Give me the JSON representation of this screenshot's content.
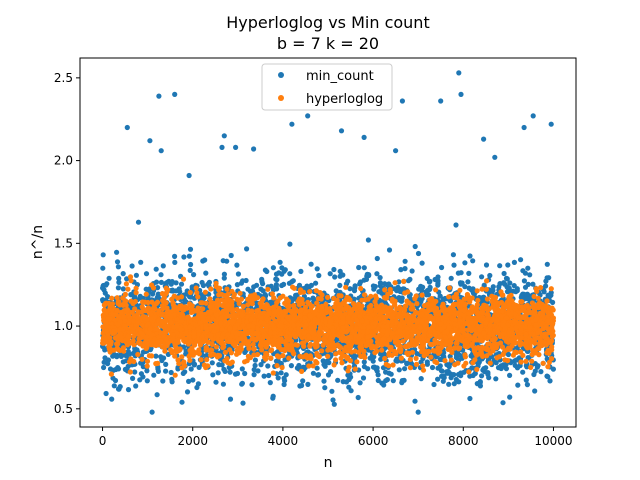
{
  "chart_data": {
    "type": "scatter",
    "title_line1": "Hyperloglog vs Min count",
    "title_line2": "b = 7 k = 20",
    "xlabel": "n",
    "ylabel": "n^/n",
    "xlim": [
      -500,
      10500
    ],
    "ylim": [
      0.39,
      2.62
    ],
    "xticks": [
      0,
      2000,
      4000,
      6000,
      8000,
      10000
    ],
    "xtick_labels": [
      "0",
      "2000",
      "4000",
      "6000",
      "8000",
      "10000"
    ],
    "yticks": [
      0.5,
      1.0,
      1.5,
      2.0,
      2.5
    ],
    "ytick_labels": [
      "0.5",
      "1.0",
      "1.5",
      "2.0",
      "2.5"
    ],
    "grid": false,
    "legend_position": "top-center",
    "series": [
      {
        "name": "min_count",
        "color": "#1f77b4",
        "n_points_approx": 10000,
        "x_range": [
          0,
          10000
        ],
        "center": 1.0,
        "spread_sd": 0.16,
        "notable_points": [
          {
            "x": 550,
            "y": 2.2
          },
          {
            "x": 1050,
            "y": 2.12
          },
          {
            "x": 1250,
            "y": 2.39
          },
          {
            "x": 1300,
            "y": 2.06
          },
          {
            "x": 1600,
            "y": 2.4
          },
          {
            "x": 1920,
            "y": 1.91
          },
          {
            "x": 2650,
            "y": 2.08
          },
          {
            "x": 2700,
            "y": 2.15
          },
          {
            "x": 2950,
            "y": 2.08
          },
          {
            "x": 3350,
            "y": 2.07
          },
          {
            "x": 4200,
            "y": 2.22
          },
          {
            "x": 4550,
            "y": 2.27
          },
          {
            "x": 5300,
            "y": 2.18
          },
          {
            "x": 5800,
            "y": 2.14
          },
          {
            "x": 6500,
            "y": 2.06
          },
          {
            "x": 6650,
            "y": 2.36
          },
          {
            "x": 7500,
            "y": 2.36
          },
          {
            "x": 7900,
            "y": 2.53
          },
          {
            "x": 7950,
            "y": 2.4
          },
          {
            "x": 8450,
            "y": 2.13
          },
          {
            "x": 8700,
            "y": 2.02
          },
          {
            "x": 9350,
            "y": 2.2
          },
          {
            "x": 9550,
            "y": 2.27
          },
          {
            "x": 9950,
            "y": 2.22
          },
          {
            "x": 1100,
            "y": 0.48
          },
          {
            "x": 7000,
            "y": 0.48
          }
        ]
      },
      {
        "name": "hyperloglog",
        "color": "#ff7f0e",
        "n_points_approx": 10000,
        "x_range": [
          0,
          10000
        ],
        "center": 1.0,
        "spread_sd": 0.09
      }
    ]
  }
}
